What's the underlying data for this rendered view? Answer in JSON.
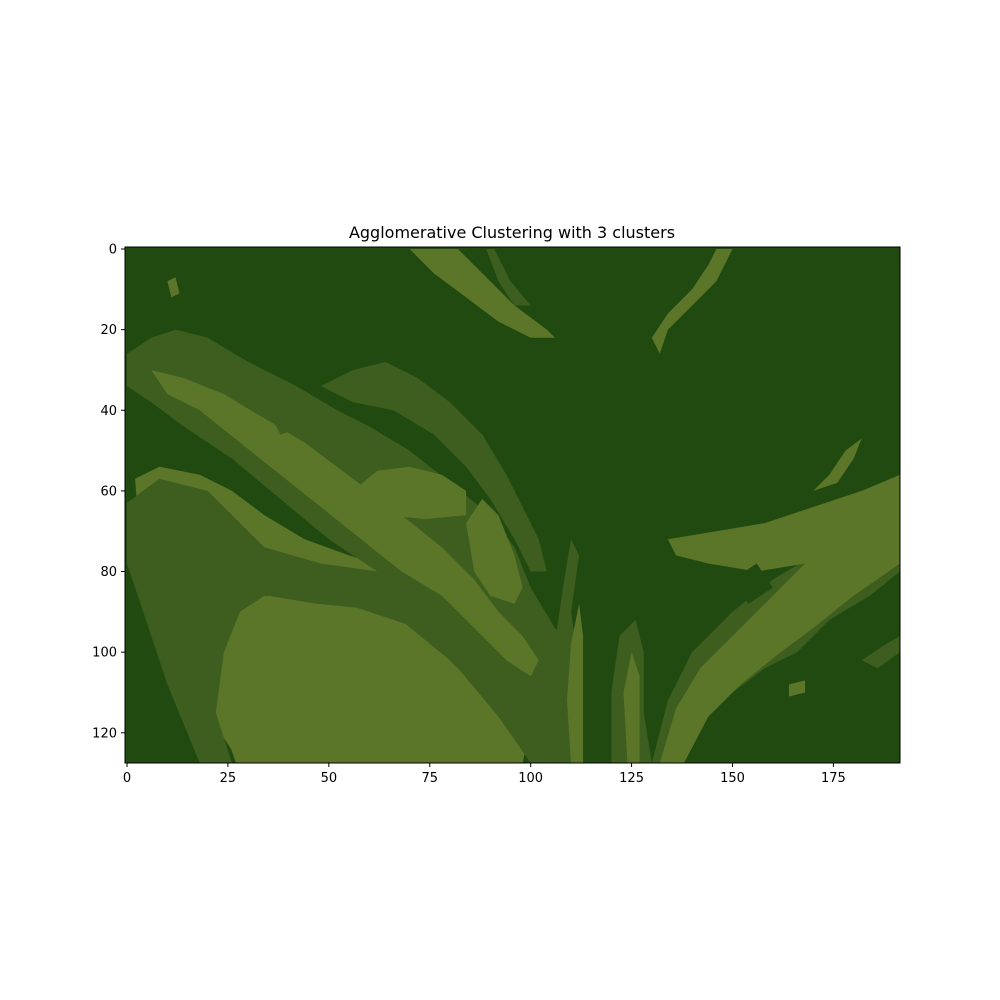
{
  "chart_data": {
    "type": "heatmap",
    "title": "Agglomerative Clustering with 3 clusters",
    "xlabel": "",
    "ylabel": "",
    "xlim": [
      -0.5,
      191.5
    ],
    "ylim": [
      127.5,
      -0.5
    ],
    "x_ticks": [
      0,
      25,
      50,
      75,
      100,
      125,
      150,
      175
    ],
    "y_ticks": [
      0,
      20,
      40,
      60,
      80,
      100,
      120
    ],
    "image_shape": [
      128,
      192
    ],
    "cluster_colors": [
      "#214a11",
      "#3e5e1f",
      "#5c7629"
    ],
    "cluster_regions": [
      {
        "cluster": 2,
        "polygon": [
          [
            2,
            57
          ],
          [
            8,
            54
          ],
          [
            18,
            56
          ],
          [
            26,
            60
          ],
          [
            34,
            66
          ],
          [
            44,
            72
          ],
          [
            55,
            76
          ],
          [
            68,
            80
          ],
          [
            80,
            87
          ],
          [
            90,
            95
          ],
          [
            97,
            104
          ],
          [
            100,
            118
          ],
          [
            98,
            127.5
          ],
          [
            28,
            127.5
          ],
          [
            20,
            115
          ],
          [
            12,
            100
          ],
          [
            6,
            85
          ],
          [
            3,
            70
          ]
        ]
      },
      {
        "cluster": 1,
        "polygon": [
          [
            0,
            63
          ],
          [
            8,
            57
          ],
          [
            20,
            60
          ],
          [
            28,
            68
          ],
          [
            34,
            74
          ],
          [
            48,
            78
          ],
          [
            62,
            80
          ],
          [
            74,
            86
          ],
          [
            86,
            93
          ],
          [
            96,
            100
          ],
          [
            104,
            108
          ],
          [
            108,
            127.5
          ],
          [
            100,
            127.5
          ],
          [
            92,
            116
          ],
          [
            82,
            104
          ],
          [
            70,
            94
          ],
          [
            58,
            90
          ],
          [
            46,
            88
          ],
          [
            34,
            86
          ],
          [
            28,
            90
          ],
          [
            24,
            100
          ],
          [
            22,
            115
          ],
          [
            26,
            127.5
          ],
          [
            18,
            127.5
          ],
          [
            10,
            108
          ],
          [
            4,
            90
          ],
          [
            0,
            78
          ]
        ]
      },
      {
        "cluster": 2,
        "polygon": [
          [
            27,
            127.5
          ],
          [
            23,
            116
          ],
          [
            25,
            100
          ],
          [
            29,
            90
          ],
          [
            35,
            86
          ],
          [
            47,
            88
          ],
          [
            57,
            89
          ],
          [
            69,
            93
          ],
          [
            80,
            102
          ],
          [
            89,
            113
          ],
          [
            93,
            127.5
          ]
        ]
      },
      {
        "cluster": 2,
        "polygon": [
          [
            52,
            105
          ],
          [
            57,
            104
          ],
          [
            59,
            110
          ],
          [
            55,
            112
          ],
          [
            51,
            110
          ]
        ]
      },
      {
        "cluster": 1,
        "polygon": [
          [
            0,
            26
          ],
          [
            6,
            22
          ],
          [
            12,
            20
          ],
          [
            20,
            22
          ],
          [
            30,
            28
          ],
          [
            42,
            34
          ],
          [
            52,
            40
          ],
          [
            60,
            44
          ],
          [
            70,
            50
          ],
          [
            80,
            58
          ],
          [
            90,
            66
          ],
          [
            96,
            74
          ],
          [
            100,
            84
          ],
          [
            106,
            94
          ],
          [
            110,
            98
          ],
          [
            108,
            106
          ],
          [
            102,
            112
          ],
          [
            96,
            108
          ],
          [
            90,
            100
          ],
          [
            84,
            92
          ],
          [
            74,
            86
          ],
          [
            62,
            80
          ],
          [
            50,
            72
          ],
          [
            38,
            62
          ],
          [
            26,
            52
          ],
          [
            14,
            44
          ],
          [
            6,
            38
          ],
          [
            0,
            34
          ]
        ]
      },
      {
        "cluster": 2,
        "polygon": [
          [
            6,
            30
          ],
          [
            14,
            32
          ],
          [
            24,
            36
          ],
          [
            34,
            42
          ],
          [
            44,
            48
          ],
          [
            52,
            54
          ],
          [
            60,
            60
          ],
          [
            68,
            66
          ],
          [
            78,
            74
          ],
          [
            86,
            82
          ],
          [
            92,
            90
          ],
          [
            98,
            96
          ],
          [
            102,
            102
          ],
          [
            100,
            106
          ],
          [
            94,
            102
          ],
          [
            86,
            94
          ],
          [
            78,
            86
          ],
          [
            68,
            80
          ],
          [
            58,
            72
          ],
          [
            48,
            64
          ],
          [
            38,
            56
          ],
          [
            28,
            48
          ],
          [
            18,
            40
          ],
          [
            10,
            36
          ]
        ]
      },
      {
        "cluster": 2,
        "polygon": [
          [
            56,
            60
          ],
          [
            62,
            55
          ],
          [
            70,
            54
          ],
          [
            78,
            56
          ],
          [
            84,
            60
          ],
          [
            84,
            66
          ],
          [
            74,
            67
          ],
          [
            64,
            66
          ],
          [
            56,
            64
          ]
        ]
      },
      {
        "cluster": 1,
        "polygon": [
          [
            48,
            34
          ],
          [
            56,
            30
          ],
          [
            64,
            28
          ],
          [
            72,
            32
          ],
          [
            80,
            38
          ],
          [
            88,
            46
          ],
          [
            94,
            56
          ],
          [
            98,
            64
          ],
          [
            102,
            72
          ],
          [
            104,
            80
          ],
          [
            100,
            80
          ],
          [
            96,
            72
          ],
          [
            90,
            62
          ],
          [
            84,
            54
          ],
          [
            76,
            46
          ],
          [
            66,
            40
          ],
          [
            56,
            38
          ]
        ]
      },
      {
        "cluster": 2,
        "polygon": [
          [
            84,
            68
          ],
          [
            88,
            62
          ],
          [
            92,
            66
          ],
          [
            96,
            76
          ],
          [
            98,
            84
          ],
          [
            96,
            88
          ],
          [
            90,
            86
          ],
          [
            86,
            80
          ]
        ]
      },
      {
        "cluster": 1,
        "polygon": [
          [
            35,
            40
          ],
          [
            40,
            36
          ],
          [
            46,
            38
          ],
          [
            44,
            44
          ],
          [
            38,
            46
          ]
        ]
      },
      {
        "cluster": 2,
        "polygon": [
          [
            70,
            0
          ],
          [
            82,
            0
          ],
          [
            88,
            6
          ],
          [
            96,
            14
          ],
          [
            104,
            20
          ],
          [
            106,
            22
          ],
          [
            100,
            22
          ],
          [
            92,
            18
          ],
          [
            84,
            12
          ],
          [
            76,
            6
          ]
        ]
      },
      {
        "cluster": 1,
        "polygon": [
          [
            89,
            0
          ],
          [
            91,
            0
          ],
          [
            95,
            8
          ],
          [
            100,
            14
          ],
          [
            96,
            14
          ],
          [
            92,
            8
          ]
        ]
      },
      {
        "cluster": 2,
        "polygon": [
          [
            144,
            4
          ],
          [
            146,
            0
          ],
          [
            150,
            0
          ],
          [
            146,
            8
          ],
          [
            140,
            14
          ],
          [
            134,
            20
          ],
          [
            132,
            26
          ],
          [
            130,
            22
          ],
          [
            134,
            16
          ],
          [
            140,
            10
          ]
        ]
      },
      {
        "cluster": 2,
        "polygon": [
          [
            10,
            8
          ],
          [
            12,
            7
          ],
          [
            13,
            11
          ],
          [
            11,
            12
          ]
        ]
      },
      {
        "cluster": 1,
        "polygon": [
          [
            16,
            24
          ],
          [
            20,
            22
          ],
          [
            22,
            27
          ],
          [
            18,
            29
          ]
        ]
      },
      {
        "cluster": 1,
        "polygon": [
          [
            106,
            127.5
          ],
          [
            104,
            112
          ],
          [
            106,
            98
          ],
          [
            108,
            84
          ],
          [
            110,
            72
          ],
          [
            112,
            76
          ],
          [
            110,
            90
          ],
          [
            112,
            104
          ],
          [
            112,
            127.5
          ]
        ]
      },
      {
        "cluster": 2,
        "polygon": [
          [
            110,
            127.5
          ],
          [
            109,
            112
          ],
          [
            110,
            98
          ],
          [
            112,
            88
          ],
          [
            113,
            96
          ],
          [
            113,
            112
          ],
          [
            113,
            127.5
          ]
        ]
      },
      {
        "cluster": 1,
        "polygon": [
          [
            120,
            127.5
          ],
          [
            120,
            110
          ],
          [
            122,
            96
          ],
          [
            126,
            92
          ],
          [
            128,
            100
          ],
          [
            128,
            115
          ],
          [
            130,
            127.5
          ]
        ]
      },
      {
        "cluster": 2,
        "polygon": [
          [
            124,
            127.5
          ],
          [
            123,
            110
          ],
          [
            125,
            100
          ],
          [
            127,
            106
          ],
          [
            127,
            127.5
          ]
        ]
      },
      {
        "cluster": 1,
        "polygon": [
          [
            130,
            127.5
          ],
          [
            134,
            112
          ],
          [
            140,
            100
          ],
          [
            150,
            90
          ],
          [
            160,
            82
          ],
          [
            170,
            76
          ],
          [
            180,
            70
          ],
          [
            191.5,
            62
          ],
          [
            191.5,
            80
          ],
          [
            184,
            86
          ],
          [
            174,
            92
          ],
          [
            166,
            100
          ],
          [
            158,
            104
          ],
          [
            150,
            110
          ],
          [
            142,
            118
          ],
          [
            136,
            127.5
          ]
        ]
      },
      {
        "cluster": 2,
        "polygon": [
          [
            134,
            72
          ],
          [
            146,
            70
          ],
          [
            158,
            68
          ],
          [
            170,
            64
          ],
          [
            182,
            60
          ],
          [
            191.5,
            56
          ],
          [
            191.5,
            78
          ],
          [
            180,
            86
          ],
          [
            170,
            94
          ],
          [
            162,
            100
          ],
          [
            152,
            108
          ],
          [
            144,
            116
          ],
          [
            138,
            127.5
          ],
          [
            132,
            127.5
          ],
          [
            136,
            114
          ],
          [
            142,
            104
          ],
          [
            150,
            96
          ],
          [
            160,
            86
          ],
          [
            168,
            78
          ],
          [
            156,
            80
          ],
          [
            144,
            78
          ],
          [
            136,
            76
          ]
        ]
      },
      {
        "cluster": 0,
        "polygon": [
          [
            150,
            82
          ],
          [
            156,
            78
          ],
          [
            160,
            84
          ],
          [
            154,
            88
          ]
        ]
      },
      {
        "cluster": 2,
        "polygon": [
          [
            170,
            60
          ],
          [
            174,
            56
          ],
          [
            178,
            50
          ],
          [
            182,
            47
          ],
          [
            180,
            52
          ],
          [
            176,
            58
          ]
        ]
      },
      {
        "cluster": 1,
        "polygon": [
          [
            182,
            102
          ],
          [
            188,
            98
          ],
          [
            191.5,
            96
          ],
          [
            191.5,
            100
          ],
          [
            186,
            104
          ]
        ]
      },
      {
        "cluster": 2,
        "polygon": [
          [
            164,
            108
          ],
          [
            168,
            107
          ],
          [
            168,
            110
          ],
          [
            164,
            111
          ]
        ]
      }
    ]
  }
}
